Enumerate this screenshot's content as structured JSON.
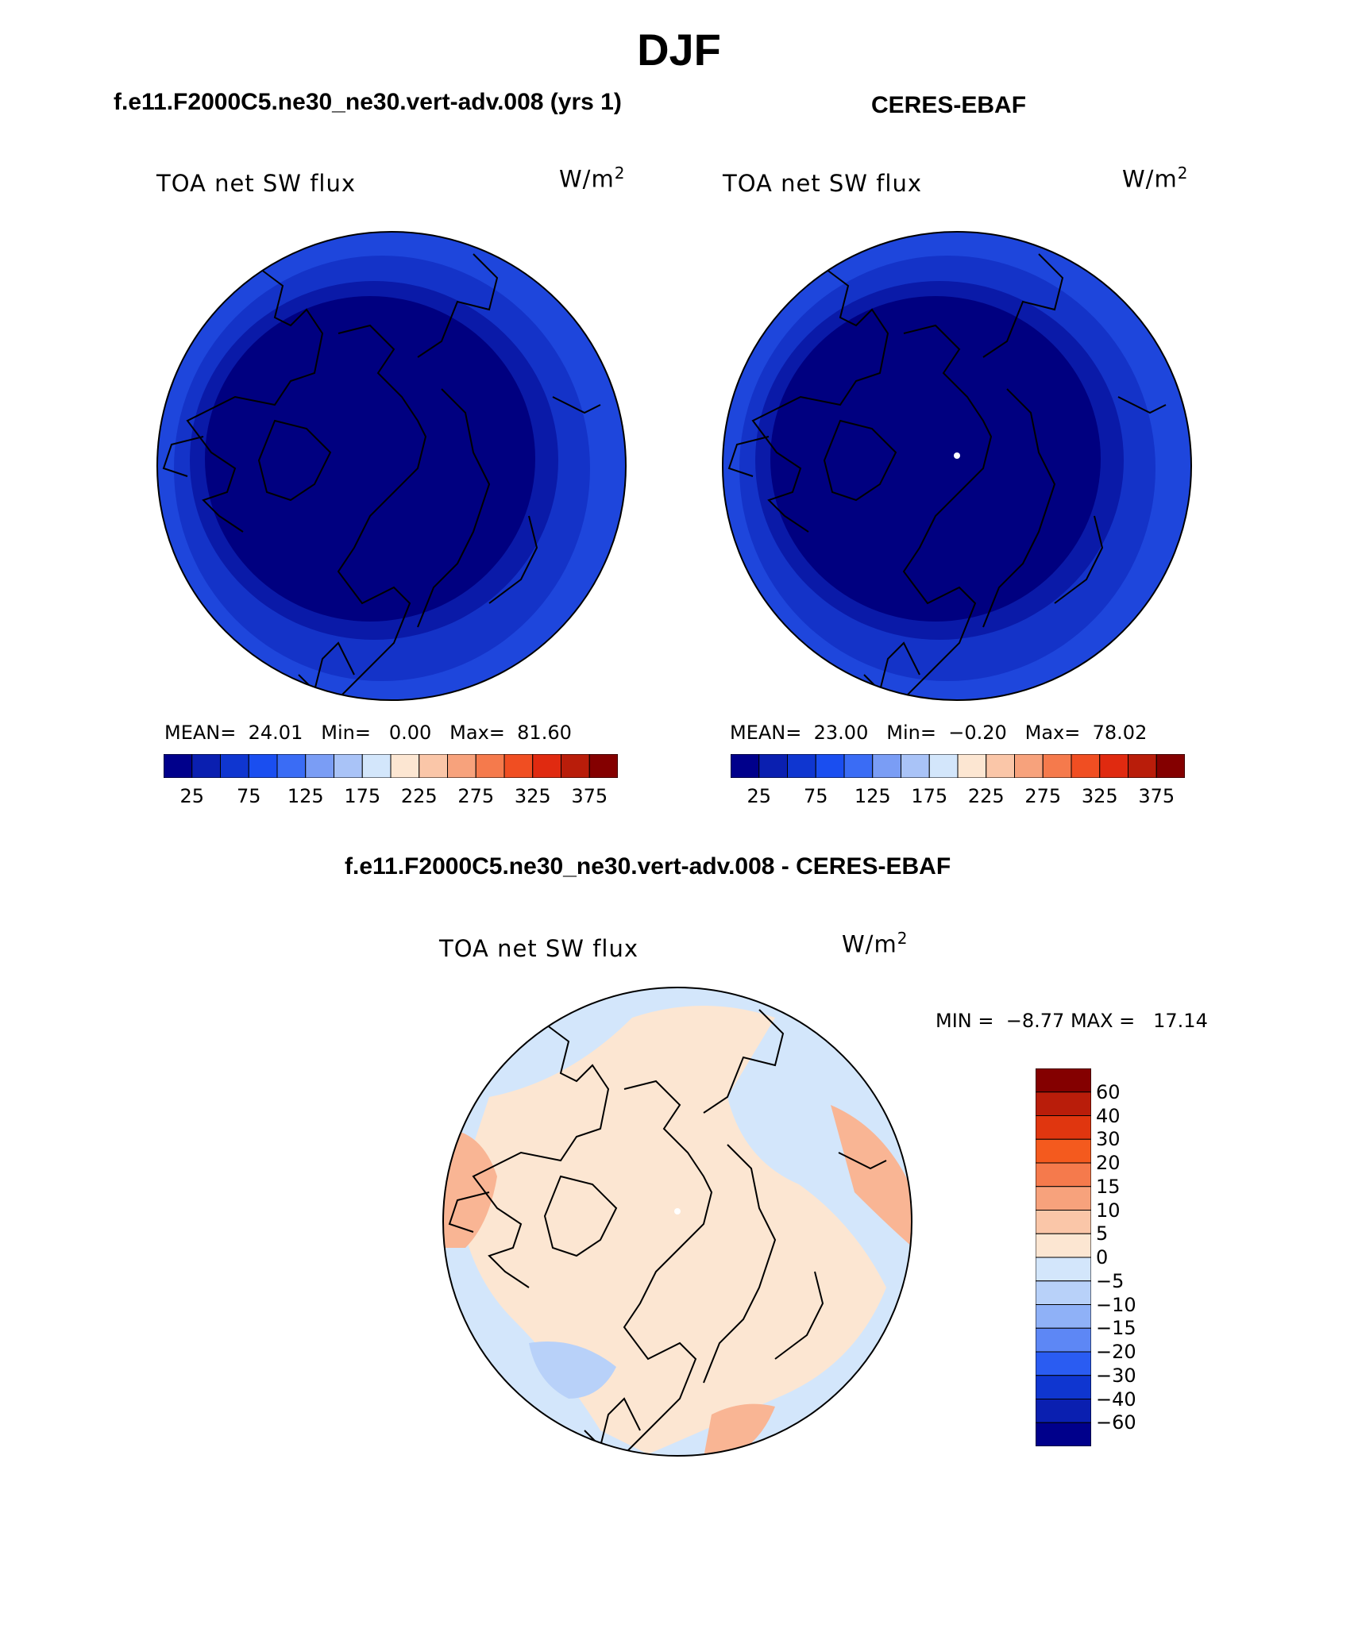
{
  "title": "DJF",
  "panels": {
    "model": {
      "case_title": "f.e11.F2000C5.ne30_ne30.vert-adv.008 (yrs 1)",
      "variable": "TOA net SW flux",
      "units_base": "W/m",
      "units_exp": "2",
      "mean_label": "MEAN=",
      "mean": "24.01",
      "min_label": "Min=",
      "min": "0.00",
      "max_label": "Max=",
      "max": "81.60"
    },
    "obs": {
      "case_title": "CERES-EBAF",
      "variable": "TOA net SW flux",
      "units_base": "W/m",
      "units_exp": "2",
      "mean_label": "MEAN=",
      "mean": "23.00",
      "min_label": "Min=",
      "min": "−0.20",
      "max_label": "Max=",
      "max": "78.02"
    },
    "diff": {
      "case_title": "f.e11.F2000C5.ne30_ne30.vert-adv.008 - CERES-EBAF",
      "variable": "TOA net SW flux",
      "units_base": "W/m",
      "units_exp": "2",
      "min_label": "MIN =",
      "min": "−8.77",
      "max_label": "MAX =",
      "max": "17.14"
    }
  },
  "colorbar_field": {
    "ticks": [
      "25",
      "75",
      "125",
      "175",
      "225",
      "275",
      "325",
      "375"
    ],
    "colors": [
      "#00008b",
      "#0a1fb0",
      "#0f36d0",
      "#1a4ef0",
      "#3a6cf5",
      "#7a9df5",
      "#a9c3f7",
      "#d3e6fb",
      "#fce6d2",
      "#fac6a8",
      "#f7a27c",
      "#f57a4c",
      "#f04e22",
      "#e02a10",
      "#b91d0a",
      "#840000"
    ]
  },
  "colorbar_diff": {
    "labels": [
      "60",
      "40",
      "30",
      "20",
      "15",
      "10",
      "5",
      "0",
      "−5",
      "−10",
      "−15",
      "−20",
      "−30",
      "−40",
      "−60"
    ],
    "colors": [
      "#840000",
      "#b91d0a",
      "#e0360f",
      "#f45a1e",
      "#f57a4c",
      "#f7a27c",
      "#fac6a8",
      "#fce6d2",
      "#d3e6fb",
      "#b8d1f9",
      "#8fb1f7",
      "#5d87f5",
      "#2a5cf2",
      "#0f36d0",
      "#0a1fb0",
      "#00008b"
    ]
  },
  "map_colors": {
    "field_core": "#000080",
    "field_mid": "#0a1aa8",
    "field_outer": "#1433c8",
    "field_edge": "#1e46dc",
    "diff_warm": "#fce6d2",
    "diff_cool": "#d3e6fb",
    "diff_warm2": "#f9b594",
    "diff_cool2": "#b8d1f9"
  }
}
